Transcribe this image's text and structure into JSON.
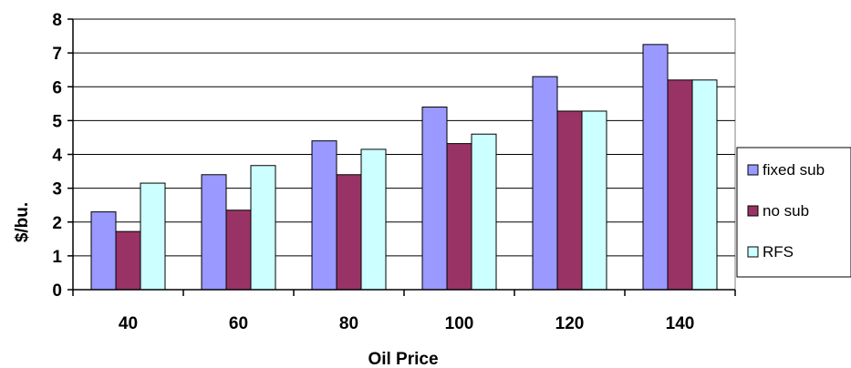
{
  "chart_data": {
    "type": "bar",
    "title": "",
    "xlabel": "Oil Price",
    "ylabel": "$/bu.",
    "categories": [
      "40",
      "60",
      "80",
      "100",
      "120",
      "140"
    ],
    "ylim": [
      0,
      8
    ],
    "yticks": [
      "0",
      "1",
      "2",
      "3",
      "4",
      "5",
      "6",
      "7",
      "8"
    ],
    "grid": true,
    "legend_position": "right",
    "series": [
      {
        "name": "fixed sub",
        "color": "#9999ff",
        "values": [
          2.3,
          3.4,
          4.4,
          5.4,
          6.3,
          7.25
        ]
      },
      {
        "name": "no sub",
        "color": "#993366",
        "values": [
          1.72,
          2.35,
          3.4,
          4.32,
          5.28,
          6.2
        ]
      },
      {
        "name": "RFS",
        "color": "#ccffff",
        "values": [
          3.15,
          3.67,
          4.15,
          4.6,
          5.28,
          6.2
        ]
      }
    ]
  }
}
